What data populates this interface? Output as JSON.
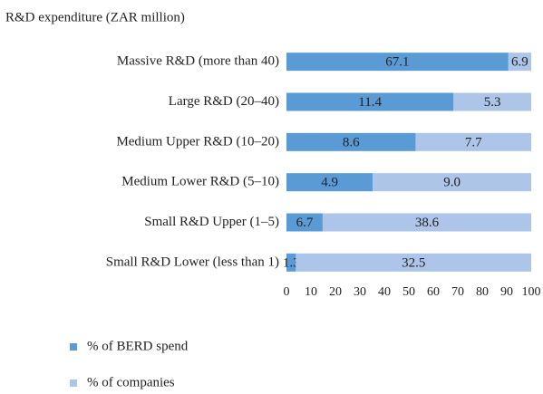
{
  "chart_data": {
    "type": "bar",
    "orientation": "horizontal",
    "stacked": "percent",
    "title": "R&D expenditure (ZAR million)",
    "categories": [
      "Massive R&D (more than 40)",
      "Large R&D (20–40)",
      "Medium Upper R&D (10–20)",
      "Medium Lower R&D (5–10)",
      "Small R&D Upper (1–5)",
      "Small R&D Lower (less than 1)"
    ],
    "series": [
      {
        "name": "% of BERD spend",
        "color": "#5b9bd5",
        "values": [
          67.1,
          11.4,
          8.6,
          4.9,
          6.7,
          1.3
        ]
      },
      {
        "name": "% of companies",
        "color": "#adc5e8",
        "values": [
          6.9,
          5.3,
          7.7,
          9.0,
          38.6,
          32.5
        ],
        "value_labels": [
          "6.9",
          "5.3",
          "7.7",
          "9.0",
          "38.6",
          "32.5"
        ]
      }
    ],
    "xlim": [
      0,
      100
    ],
    "xticks": [
      0,
      10,
      20,
      30,
      40,
      50,
      60,
      70,
      80,
      90,
      100
    ],
    "legend": "bottom"
  }
}
